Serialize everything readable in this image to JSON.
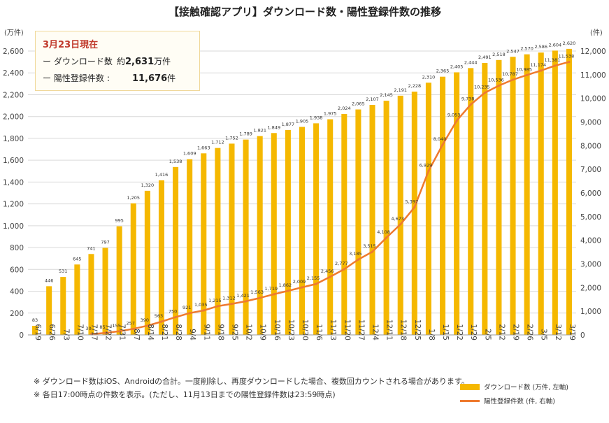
{
  "chart_data": {
    "type": "bar+line",
    "title": "【接触確認アプリ】ダウンロード数・陽性登録件数の推移",
    "left_axis_unit": "(万件)",
    "right_axis_unit": "(件)",
    "left_ylim": [
      0,
      2600
    ],
    "left_ticks": [
      "0",
      "200",
      "400",
      "600",
      "800",
      "1,000",
      "1,200",
      "1,400",
      "1,600",
      "1,800",
      "2,000",
      "2,200",
      "2,400",
      "2,600"
    ],
    "right_ylim": [
      0,
      12000
    ],
    "right_ticks": [
      "0",
      "1,000",
      "2,000",
      "3,000",
      "4,000",
      "5,000",
      "6,000",
      "7,000",
      "8,000",
      "9,000",
      "10,000",
      "11,000",
      "12,000"
    ],
    "categories": [
      "6/19",
      "6/26",
      "7/3",
      "7/10",
      "7/17",
      "7/22",
      "7/31",
      "8/7",
      "8/14",
      "8/21",
      "8/28",
      "9/4",
      "9/11",
      "9/18",
      "9/25",
      "10/2",
      "10/9",
      "10/16",
      "10/23",
      "10/30",
      "11/6",
      "11/13",
      "11/20",
      "11/27",
      "12/4",
      "12/11",
      "12/18",
      "12/25",
      "1/8",
      "1/15",
      "1/22",
      "1/29",
      "2/5",
      "2/12",
      "2/19",
      "2/26",
      "3/5",
      "3/12",
      "3/19"
    ],
    "series": [
      {
        "name": "ダウンロード数(万件、左軸)",
        "type": "bar",
        "axis": "left",
        "values": [
          83,
          446,
          531,
          645,
          741,
          797,
          995,
          1205,
          1320,
          1416,
          1538,
          1609,
          1663,
          1712,
          1752,
          1789,
          1821,
          1849,
          1877,
          1905,
          1938,
          1975,
          2024,
          2065,
          2107,
          2145,
          2191,
          2228,
          2310,
          2365,
          2405,
          2444,
          2491,
          2518,
          2547,
          2570,
          2586,
          2604,
          2620
        ],
        "labels": [
          "83",
          "446",
          "531",
          "645",
          "741",
          "797",
          "995",
          "1,205",
          "1,320",
          "1,416",
          "1,538",
          "1,609",
          "1,663",
          "1,712",
          "1,752",
          "1,789",
          "1,821",
          "1,849",
          "1,877",
          "1,905",
          "1,938",
          "1,975",
          "2,024",
          "2,065",
          "2,107",
          "2,145",
          "2,191",
          "2,228",
          "2,310",
          "2,365",
          "2,405",
          "2,444",
          "2,491",
          "2,518",
          "2,547",
          "2,570",
          "2,586",
          "2,604",
          "2,620"
        ]
      },
      {
        "name": "陽性登録件数(件、右軸)",
        "type": "line",
        "axis": "right",
        "values": [
          null,
          null,
          null,
          null,
          30,
          85,
          155,
          257,
          390,
          563,
          750,
          921,
          1035,
          1215,
          1312,
          1421,
          1563,
          1719,
          1862,
          2009,
          2155,
          2456,
          2777,
          3185,
          3515,
          4108,
          4673,
          5397,
          6929,
          8040,
          9053,
          9738,
          10235,
          10536,
          10787,
          10985,
          11174,
          11381,
          11538
        ],
        "labels": [
          "",
          "",
          "",
          "",
          "30",
          "85",
          "155",
          "257",
          "390",
          "563",
          "750",
          "921",
          "1,035",
          "1,215",
          "1,312",
          "1,421",
          "1,563",
          "1,719",
          "1,862",
          "2,009",
          "2,155",
          "2,456",
          "2,777",
          "3,185",
          "3,515",
          "4,108",
          "4,673",
          "5,397",
          "6,929",
          "8,040",
          "9,053",
          "9,738",
          "10,235",
          "10,536",
          "10,787",
          "10,985",
          "11,174",
          "11,381",
          "11,538"
        ]
      }
    ],
    "colors": {
      "bar": "#f5b800",
      "line": "#ee7a2f",
      "grid": "#d9d9d9",
      "axis_text": "#444444"
    },
    "grid": true,
    "legend_placement": "bottom-right"
  },
  "info_box": {
    "date": "3月23日現在",
    "download_label": "ー ダウンロード数",
    "download_sep": ":",
    "download_prefix": "約",
    "download_value": "2,631",
    "download_unit": "万件",
    "positive_label": "ー 陽性登録件数",
    "positive_sep": ":",
    "positive_value": "11,676",
    "positive_unit": "件"
  },
  "notes": [
    "※ ダウンロード数はiOS、Androidの合計。一度削除し、再度ダウンロードした場合、複数回カウントされる場合があります。",
    "※ 各日17:00時点の件数を表示。(ただし、11月13日までの陽性登録件数は23:59時点)"
  ],
  "legend": {
    "bar_label": "ダウンロード数 (万件, 左軸)",
    "line_label": "陽性登録件数 (件, 右軸)"
  }
}
